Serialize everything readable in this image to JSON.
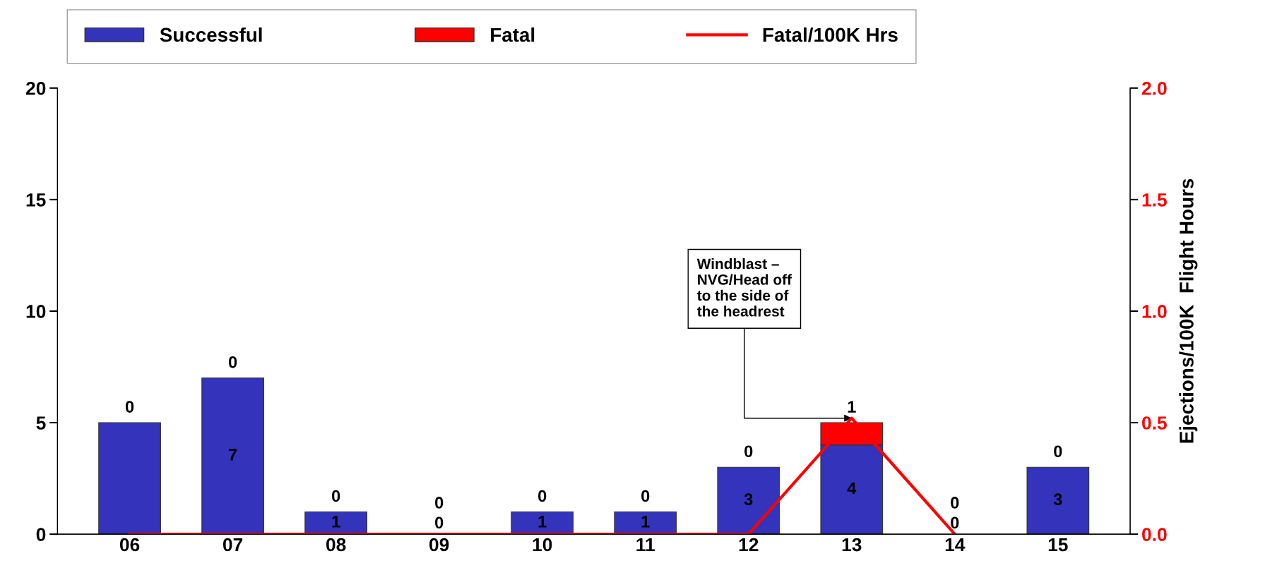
{
  "chart_data": {
    "type": "bar",
    "stacked": true,
    "categories": [
      "06",
      "07",
      "08",
      "09",
      "10",
      "11",
      "12",
      "13",
      "14",
      "15"
    ],
    "series": [
      {
        "name": "Successful",
        "color": "#3333bb",
        "values": [
          5,
          7,
          1,
          0,
          1,
          1,
          3,
          4,
          0,
          3
        ],
        "value_labels": [
          null,
          "7",
          "1",
          "0",
          "1",
          "1",
          "3",
          "4",
          "0",
          "3"
        ]
      },
      {
        "name": "Fatal",
        "color": "#ff0000",
        "values": [
          0,
          0,
          0,
          0,
          0,
          0,
          0,
          1,
          0,
          0
        ],
        "value_labels": [
          "0",
          "0",
          "0",
          "0",
          "0",
          "0",
          "0",
          "1",
          "0",
          "0"
        ]
      },
      {
        "name": "Fatal/100K Hrs",
        "type": "line",
        "axis": "y2",
        "color": "#ff0000",
        "marker": "none",
        "values": [
          0,
          0,
          0,
          0,
          0,
          0,
          0,
          0.52,
          0,
          null
        ]
      }
    ],
    "ylim": [
      0,
      20
    ],
    "yticks": [
      0,
      5,
      10,
      15,
      20
    ],
    "y2lim": [
      0,
      2
    ],
    "y2ticks": [
      {
        "value": 0,
        "label": "0.0"
      },
      {
        "value": 0.5,
        "label": "0.5"
      },
      {
        "value": 1,
        "label": "1.0"
      },
      {
        "value": 1.5,
        "label": "1.5"
      },
      {
        "value": 2,
        "label": "2.0"
      }
    ],
    "y2label": "Ejections/100K  Flight Hours",
    "annotations": [
      {
        "text": "Windblast –\nNVG/Head off\nto the side of\nthe headrest",
        "x": "13",
        "y": 5.2
      }
    ],
    "legend": "top",
    "grid": false
  }
}
